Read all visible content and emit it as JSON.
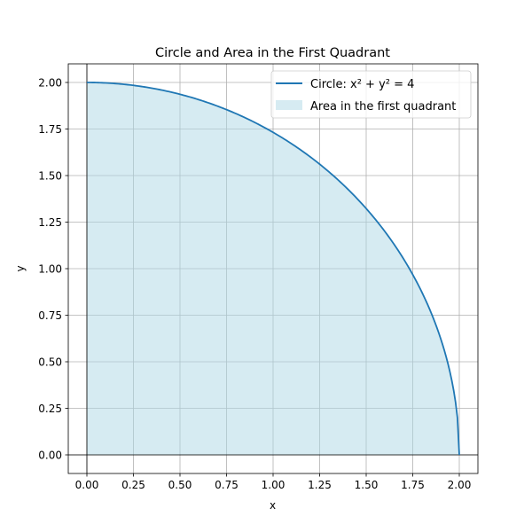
{
  "chart_data": {
    "type": "area",
    "title": "Circle and Area in the First Quadrant",
    "xlabel": "x",
    "ylabel": "y",
    "xlim": [
      -0.1,
      2.1
    ],
    "ylim": [
      -0.1,
      2.1
    ],
    "xticks": [
      0.0,
      0.25,
      0.5,
      0.75,
      1.0,
      1.25,
      1.5,
      1.75,
      2.0
    ],
    "yticks": [
      0.0,
      0.25,
      0.5,
      0.75,
      1.0,
      1.25,
      1.5,
      1.75,
      2.0
    ],
    "xtick_labels": [
      "0.00",
      "0.25",
      "0.50",
      "0.75",
      "1.00",
      "1.25",
      "1.50",
      "1.75",
      "2.00"
    ],
    "ytick_labels": [
      "0.00",
      "0.25",
      "0.50",
      "0.75",
      "1.00",
      "1.25",
      "1.50",
      "1.75",
      "2.00"
    ],
    "grid": true,
    "reference_lines": {
      "x": 0,
      "y": 0
    },
    "legend_position": "upper right",
    "series": [
      {
        "name": "Circle: x² + y² = 4",
        "kind": "line",
        "color": "#1f77b4",
        "equation": "x^2 + y^2 = 4",
        "x": [
          0.0,
          0.25,
          0.5,
          0.75,
          1.0,
          1.25,
          1.5,
          1.75,
          1.9,
          1.95,
          1.99,
          2.0
        ],
        "y": [
          2.0,
          1.984,
          1.936,
          1.854,
          1.732,
          1.561,
          1.323,
          0.968,
          0.624,
          0.444,
          0.2,
          0.0
        ]
      },
      {
        "name": "Area in the first quadrant",
        "kind": "fill",
        "color": "#add8e6",
        "x": [
          0.0,
          0.25,
          0.5,
          0.75,
          1.0,
          1.25,
          1.5,
          1.75,
          1.9,
          1.95,
          1.99,
          2.0
        ],
        "y": [
          2.0,
          1.984,
          1.936,
          1.854,
          1.732,
          1.561,
          1.323,
          0.968,
          0.624,
          0.444,
          0.2,
          0.0
        ]
      }
    ]
  }
}
